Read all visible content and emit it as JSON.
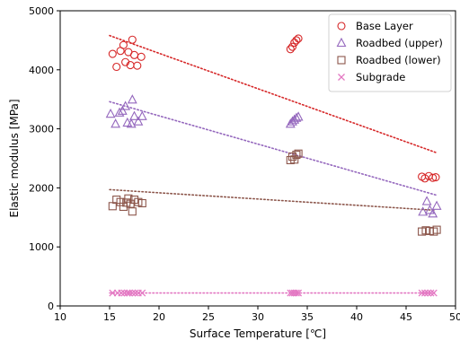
{
  "chart_data": {
    "type": "scatter",
    "xlabel": "Surface Temperature [℃]",
    "ylabel": "Elastic modulus [MPa]",
    "xlim": [
      10,
      50
    ],
    "ylim": [
      0,
      5000
    ],
    "xticks": [
      10,
      15,
      20,
      25,
      30,
      35,
      40,
      45,
      50
    ],
    "yticks": [
      0,
      1000,
      2000,
      3000,
      4000,
      5000
    ],
    "grid": false,
    "legend_position": "top-right",
    "series": [
      {
        "name": "Base Layer",
        "marker": "circle",
        "color": "#d62728",
        "points": [
          [
            15.3,
            4270
          ],
          [
            15.7,
            4050
          ],
          [
            16.1,
            4320
          ],
          [
            16.4,
            4420
          ],
          [
            16.6,
            4130
          ],
          [
            16.9,
            4300
          ],
          [
            17.1,
            4080
          ],
          [
            17.3,
            4510
          ],
          [
            17.5,
            4250
          ],
          [
            17.8,
            4070
          ],
          [
            18.2,
            4220
          ],
          [
            33.3,
            4350
          ],
          [
            33.5,
            4390
          ],
          [
            33.7,
            4460
          ],
          [
            33.9,
            4500
          ],
          [
            34.1,
            4530
          ],
          [
            46.6,
            2190
          ],
          [
            46.9,
            2160
          ],
          [
            47.3,
            2200
          ],
          [
            47.7,
            2170
          ],
          [
            48.0,
            2180
          ]
        ],
        "trend": [
          [
            15,
            4580
          ],
          [
            48,
            2600
          ]
        ]
      },
      {
        "name": "Roadbed (upper)",
        "marker": "triangle",
        "color": "#9467bd",
        "points": [
          [
            15.1,
            3250
          ],
          [
            15.6,
            3080
          ],
          [
            16.0,
            3270
          ],
          [
            16.3,
            3300
          ],
          [
            16.6,
            3380
          ],
          [
            16.8,
            3100
          ],
          [
            17.2,
            3080
          ],
          [
            17.3,
            3490
          ],
          [
            17.5,
            3210
          ],
          [
            17.9,
            3120
          ],
          [
            18.3,
            3210
          ],
          [
            33.3,
            3080
          ],
          [
            33.5,
            3120
          ],
          [
            33.7,
            3150
          ],
          [
            33.9,
            3180
          ],
          [
            34.1,
            3200
          ],
          [
            46.7,
            1590
          ],
          [
            47.1,
            1770
          ],
          [
            47.4,
            1620
          ],
          [
            47.7,
            1560
          ],
          [
            48.1,
            1690
          ]
        ],
        "trend": [
          [
            15,
            3460
          ],
          [
            48,
            1880
          ]
        ]
      },
      {
        "name": "Roadbed (lower)",
        "marker": "square",
        "color": "#8c564b",
        "points": [
          [
            15.3,
            1690
          ],
          [
            15.7,
            1800
          ],
          [
            16.1,
            1760
          ],
          [
            16.4,
            1680
          ],
          [
            16.7,
            1750
          ],
          [
            16.9,
            1820
          ],
          [
            17.1,
            1730
          ],
          [
            17.3,
            1600
          ],
          [
            17.5,
            1800
          ],
          [
            17.9,
            1760
          ],
          [
            18.3,
            1740
          ],
          [
            33.3,
            2470
          ],
          [
            33.5,
            2530
          ],
          [
            33.7,
            2480
          ],
          [
            33.9,
            2560
          ],
          [
            34.1,
            2580
          ],
          [
            46.6,
            1260
          ],
          [
            47.0,
            1280
          ],
          [
            47.4,
            1270
          ],
          [
            47.8,
            1260
          ],
          [
            48.1,
            1290
          ]
        ],
        "trend": [
          [
            15,
            1970
          ],
          [
            48,
            1620
          ]
        ]
      },
      {
        "name": "Subgrade",
        "marker": "x",
        "color": "#e377c2",
        "points": [
          [
            15.3,
            220
          ],
          [
            15.8,
            220
          ],
          [
            16.2,
            220
          ],
          [
            16.5,
            220
          ],
          [
            16.8,
            220
          ],
          [
            17.0,
            220
          ],
          [
            17.3,
            220
          ],
          [
            17.6,
            220
          ],
          [
            17.9,
            220
          ],
          [
            18.3,
            220
          ],
          [
            33.3,
            220
          ],
          [
            33.5,
            220
          ],
          [
            33.7,
            220
          ],
          [
            33.9,
            220
          ],
          [
            34.1,
            220
          ],
          [
            46.6,
            220
          ],
          [
            46.9,
            220
          ],
          [
            47.2,
            220
          ],
          [
            47.5,
            220
          ],
          [
            47.8,
            220
          ]
        ],
        "trend": [
          [
            15,
            220
          ],
          [
            48,
            220
          ]
        ]
      }
    ]
  }
}
